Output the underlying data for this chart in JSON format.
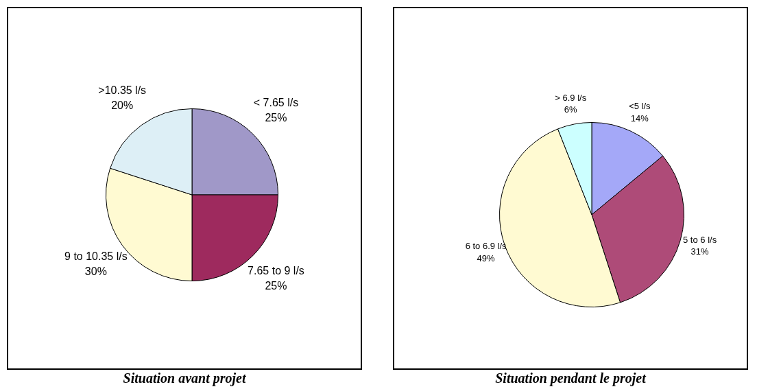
{
  "chart_data": [
    {
      "type": "pie",
      "title": "Situation avant projet",
      "categories": [
        "< 7.65 l/s",
        "7.65 to 9 l/s",
        "9 to 10.35 l/s",
        ">10.35 l/s"
      ],
      "values": [
        25,
        25,
        30,
        20
      ],
      "colors": [
        "#a098c8",
        "#9e2a5e",
        "#fffad2",
        "#ddeff6"
      ],
      "value_labels": [
        "25%",
        "25%",
        "30%",
        "20%"
      ]
    },
    {
      "type": "pie",
      "title": "Situation pendant le projet",
      "categories": [
        "<5 l/s",
        "5 to 6 l/s",
        "6 to 6.9 l/s",
        "> 6.9 l/s"
      ],
      "values": [
        14,
        31,
        49,
        6
      ],
      "colors": [
        "#a4a8f8",
        "#ae4b78",
        "#fffad2",
        "#ccffff"
      ],
      "value_labels": [
        "14%",
        "31%",
        "49%",
        "6%"
      ]
    }
  ]
}
